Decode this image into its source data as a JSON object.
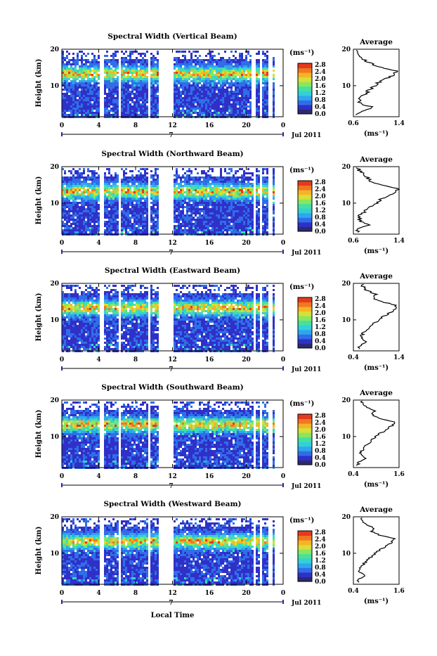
{
  "common": {
    "date_label": "Jul 2011",
    "day_label": "7",
    "xlabel": "Local Time",
    "ylabel": "Height (km)",
    "unit_label": "(ms⁻¹)",
    "avg_title": "Average",
    "avg_xlabel": "(ms⁻¹)",
    "x_ticks": [
      "0",
      "4",
      "8",
      "12",
      "16",
      "20",
      "0"
    ],
    "y_ticks": [
      "10",
      "20"
    ],
    "colorbar_ticks": [
      "0.0",
      "0.4",
      "0.8",
      "1.2",
      "1.6",
      "2.0",
      "2.4",
      "2.8"
    ],
    "colormap": [
      "#2a2a70",
      "#3030c8",
      "#2f6ee8",
      "#2fa6ee",
      "#34d0d8",
      "#46e0a0",
      "#8ae660",
      "#d6e038",
      "#f4b428",
      "#f07820",
      "#e43a1e"
    ]
  },
  "chart_data": [
    {
      "type": "heatmap",
      "title": "Spectral Width (Vertical Beam)",
      "x_range_hours": [
        0,
        24
      ],
      "y_range_km": [
        1.5,
        20
      ],
      "color_range": [
        0,
        2.8
      ],
      "data_gaps_hours": [
        [
          4.0,
          4.5
        ],
        [
          6.0,
          6.3
        ],
        [
          9.3,
          9.6
        ],
        [
          10.5,
          12.1
        ],
        [
          20.5,
          21.0
        ],
        [
          21.3,
          21.6
        ],
        [
          22.3,
          22.7
        ]
      ],
      "average_profile": {
        "xlim": [
          0.6,
          1.4
        ],
        "x_ticks": [
          "0.6",
          "1.4"
        ],
        "height_km": [
          2,
          3,
          4,
          5,
          6,
          7,
          8,
          9,
          10,
          11,
          12,
          13,
          14,
          15,
          16,
          17,
          18,
          19,
          20
        ],
        "width": [
          0.68,
          0.72,
          0.95,
          0.74,
          0.7,
          0.76,
          0.84,
          0.88,
          0.98,
          1.05,
          1.18,
          1.32,
          1.36,
          1.1,
          0.92,
          0.8,
          0.72,
          0.68,
          0.66
        ]
      }
    },
    {
      "type": "heatmap",
      "title": "Spectral Width (Northward Beam)",
      "x_range_hours": [
        0,
        24
      ],
      "y_range_km": [
        1.5,
        20
      ],
      "color_range": [
        0,
        2.8
      ],
      "data_gaps_hours": [
        [
          4.0,
          4.4
        ],
        [
          6.0,
          6.3
        ],
        [
          9.3,
          9.6
        ],
        [
          10.3,
          12.0
        ],
        [
          20.6,
          21.0
        ],
        [
          21.3,
          21.6
        ],
        [
          22.3,
          22.7
        ]
      ],
      "average_profile": {
        "xlim": [
          0.6,
          1.4
        ],
        "x_ticks": [
          "0.6",
          "1.4"
        ],
        "height_km": [
          2,
          3,
          4,
          5,
          6,
          7,
          8,
          9,
          10,
          11,
          12,
          13,
          14,
          15,
          16,
          17,
          18,
          19,
          20
        ],
        "width": [
          0.66,
          0.7,
          0.9,
          0.72,
          0.7,
          0.74,
          0.82,
          0.9,
          1.0,
          1.08,
          1.22,
          1.34,
          1.38,
          1.05,
          0.9,
          0.84,
          0.76,
          0.7,
          0.68
        ]
      }
    },
    {
      "type": "heatmap",
      "title": "Spectral Width (Eastward Beam)",
      "x_range_hours": [
        0,
        24
      ],
      "y_range_km": [
        1.5,
        20
      ],
      "color_range": [
        0,
        2.8
      ],
      "data_gaps_hours": [
        [
          4.0,
          4.4
        ],
        [
          6.0,
          6.3
        ],
        [
          9.3,
          9.6
        ],
        [
          10.4,
          12.1
        ],
        [
          20.6,
          21.0
        ],
        [
          21.3,
          21.6
        ],
        [
          22.3,
          22.7
        ]
      ],
      "average_profile": {
        "xlim": [
          0.4,
          1.4
        ],
        "x_ticks": [
          "0.4",
          "1.4"
        ],
        "height_km": [
          2,
          3,
          4,
          5,
          6,
          7,
          8,
          9,
          10,
          11,
          12,
          13,
          14,
          15,
          16,
          17,
          18,
          19,
          20
        ],
        "width": [
          0.5,
          0.55,
          0.7,
          0.56,
          0.6,
          0.66,
          0.74,
          0.84,
          0.96,
          1.06,
          1.2,
          1.32,
          1.34,
          1.0,
          0.82,
          0.9,
          0.7,
          0.62,
          0.58
        ]
      }
    },
    {
      "type": "heatmap",
      "title": "Spectral Width (Southward Beam)",
      "x_range_hours": [
        0,
        24
      ],
      "y_range_km": [
        1.5,
        20
      ],
      "color_range": [
        0,
        2.8
      ],
      "data_gaps_hours": [
        [
          4.0,
          4.4
        ],
        [
          6.0,
          6.3
        ],
        [
          9.3,
          9.6
        ],
        [
          10.4,
          12.0
        ],
        [
          20.6,
          21.0
        ],
        [
          21.3,
          21.6
        ],
        [
          22.3,
          22.7
        ]
      ],
      "average_profile": {
        "xlim": [
          0.4,
          1.6
        ],
        "x_ticks": [
          "0.4",
          "1.6"
        ],
        "height_km": [
          2,
          3,
          4,
          5,
          6,
          7,
          8,
          9,
          10,
          11,
          12,
          13,
          14,
          15,
          16,
          17,
          18,
          19,
          20
        ],
        "width": [
          0.5,
          0.55,
          0.72,
          0.58,
          0.62,
          0.68,
          0.78,
          0.88,
          1.0,
          1.12,
          1.28,
          1.42,
          1.48,
          1.1,
          0.9,
          0.96,
          0.74,
          0.64,
          0.6
        ]
      }
    },
    {
      "type": "heatmap",
      "title": "Spectral Width (Westward Beam)",
      "x_range_hours": [
        0,
        24
      ],
      "y_range_km": [
        1.5,
        20
      ],
      "color_range": [
        0,
        2.8
      ],
      "data_gaps_hours": [
        [
          4.0,
          4.4
        ],
        [
          6.0,
          6.3
        ],
        [
          9.3,
          9.6
        ],
        [
          10.4,
          12.0
        ],
        [
          20.6,
          21.0
        ],
        [
          21.3,
          21.6
        ],
        [
          22.3,
          22.7
        ]
      ],
      "average_profile": {
        "xlim": [
          0.4,
          1.6
        ],
        "x_ticks": [
          "0.4",
          "1.6"
        ],
        "height_km": [
          2,
          3,
          4,
          5,
          6,
          7,
          8,
          9,
          10,
          11,
          12,
          13,
          14,
          15,
          16,
          17,
          18,
          19,
          20
        ],
        "width": [
          0.5,
          0.54,
          0.7,
          0.56,
          0.6,
          0.66,
          0.76,
          0.86,
          0.98,
          1.1,
          1.26,
          1.4,
          1.46,
          1.08,
          0.88,
          0.94,
          0.72,
          0.62,
          0.58
        ]
      }
    }
  ]
}
